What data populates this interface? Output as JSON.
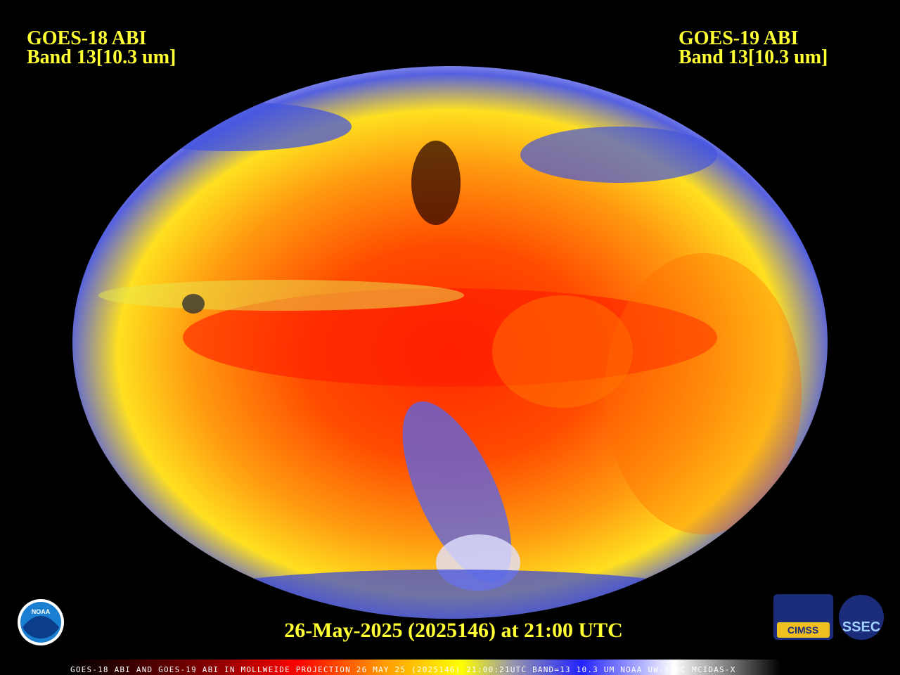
{
  "header": {
    "left": {
      "satellite": "GOES-18 ABI",
      "band": "Band 13[10.3 um]"
    },
    "right": {
      "satellite": "GOES-19 ABI",
      "band": "Band 13[10.3 um]"
    }
  },
  "timestamp": "26-May-2025 (2025146) at 21:00 UTC",
  "footer": "GOES-18 ABI AND GOES-19 ABI IN MOLLWEIDE PROJECTION 26 MAY 25 (2025146) 21:00:21UTC BAND=13 10.3 UM NOAA UW-SSEC MCIDAS-X",
  "logos": {
    "noaa": "NOAA",
    "cimss": "CIMSS",
    "ssec": "SSEC"
  }
}
